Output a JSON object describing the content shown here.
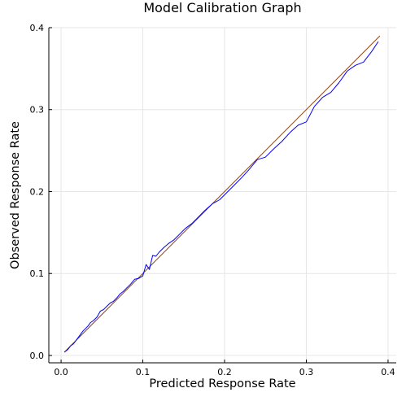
{
  "chart_data": {
    "type": "line",
    "title": "Model Calibration Graph",
    "xlabel": "Predicted Response Rate",
    "ylabel": "Observed Response Rate",
    "xlim": [
      -0.015,
      0.41
    ],
    "ylim": [
      -0.009,
      0.4
    ],
    "xticks": [
      0.0,
      0.1,
      0.2,
      0.3,
      0.4
    ],
    "xtick_labels": [
      "0.0",
      "0.1",
      "0.2",
      "0.3",
      "0.4"
    ],
    "yticks": [
      0.0,
      0.1,
      0.2,
      0.3,
      0.4
    ],
    "ytick_labels": [
      "0.0",
      "0.1",
      "0.2",
      "0.3",
      "0.4"
    ],
    "grid": true,
    "legend": "none",
    "series": [
      {
        "color": "#8b4513",
        "x": [
          0.004,
          0.39
        ],
        "y": [
          0.004,
          0.39
        ]
      },
      {
        "color": "#0000ff",
        "x": [
          0.004,
          0.008,
          0.012,
          0.015,
          0.018,
          0.021,
          0.024,
          0.027,
          0.03,
          0.033,
          0.036,
          0.04,
          0.044,
          0.048,
          0.052,
          0.056,
          0.06,
          0.064,
          0.068,
          0.072,
          0.076,
          0.08,
          0.085,
          0.09,
          0.095,
          0.1,
          0.104,
          0.108,
          0.112,
          0.116,
          0.12,
          0.126,
          0.132,
          0.138,
          0.145,
          0.152,
          0.16,
          0.168,
          0.176,
          0.185,
          0.194,
          0.203,
          0.212,
          0.221,
          0.23,
          0.24,
          0.25,
          0.26,
          0.27,
          0.28,
          0.29,
          0.3,
          0.31,
          0.32,
          0.33,
          0.34,
          0.35,
          0.36,
          0.37,
          0.38,
          0.388
        ],
        "y": [
          0.004,
          0.007,
          0.012,
          0.014,
          0.018,
          0.022,
          0.026,
          0.03,
          0.033,
          0.036,
          0.04,
          0.043,
          0.047,
          0.054,
          0.056,
          0.06,
          0.064,
          0.066,
          0.07,
          0.075,
          0.078,
          0.082,
          0.087,
          0.093,
          0.094,
          0.097,
          0.111,
          0.105,
          0.122,
          0.121,
          0.126,
          0.132,
          0.137,
          0.141,
          0.148,
          0.155,
          0.161,
          0.169,
          0.177,
          0.185,
          0.19,
          0.199,
          0.208,
          0.217,
          0.227,
          0.239,
          0.242,
          0.252,
          0.261,
          0.272,
          0.281,
          0.285,
          0.304,
          0.315,
          0.321,
          0.333,
          0.347,
          0.354,
          0.358,
          0.371,
          0.383
        ]
      }
    ]
  }
}
